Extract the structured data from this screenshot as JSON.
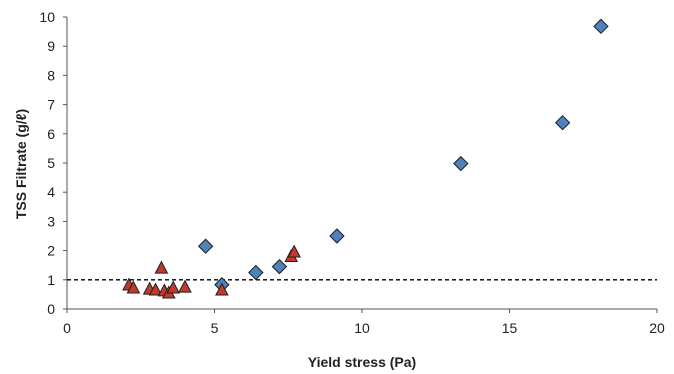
{
  "chart_data": {
    "type": "scatter",
    "title": "",
    "xlabel": "Yield stress (Pa)",
    "ylabel": "TSS Filtrate (g/ℓ)",
    "xlim": [
      0,
      20
    ],
    "ylim": [
      0,
      10
    ],
    "x_ticks": [
      0,
      5,
      10,
      15,
      20
    ],
    "y_ticks": [
      0,
      1,
      2,
      3,
      4,
      5,
      6,
      7,
      8,
      9,
      10
    ],
    "grid": false,
    "legend": "none",
    "reference_line": {
      "y": 1,
      "style": "dashed",
      "color": "#000000"
    },
    "series": [
      {
        "marker": "diamond",
        "color": "#4F81BD",
        "edge_color": "#1F1F1F",
        "points": [
          {
            "x": 4.7,
            "y": 2.15
          },
          {
            "x": 5.25,
            "y": 0.83
          },
          {
            "x": 6.4,
            "y": 1.25
          },
          {
            "x": 7.2,
            "y": 1.45
          },
          {
            "x": 9.15,
            "y": 2.5
          },
          {
            "x": 13.35,
            "y": 4.98
          },
          {
            "x": 16.8,
            "y": 6.38
          },
          {
            "x": 18.1,
            "y": 9.68
          }
        ]
      },
      {
        "marker": "triangle",
        "color": "#C0392B",
        "edge_color": "#1F1F1F",
        "points": [
          {
            "x": 2.1,
            "y": 0.82
          },
          {
            "x": 2.25,
            "y": 0.72
          },
          {
            "x": 2.8,
            "y": 0.68
          },
          {
            "x": 3.0,
            "y": 0.65
          },
          {
            "x": 3.2,
            "y": 1.4
          },
          {
            "x": 3.3,
            "y": 0.62
          },
          {
            "x": 3.45,
            "y": 0.55
          },
          {
            "x": 3.6,
            "y": 0.72
          },
          {
            "x": 4.0,
            "y": 0.75
          },
          {
            "x": 5.25,
            "y": 0.65
          },
          {
            "x": 7.6,
            "y": 1.8
          },
          {
            "x": 7.7,
            "y": 1.95
          }
        ]
      }
    ]
  }
}
